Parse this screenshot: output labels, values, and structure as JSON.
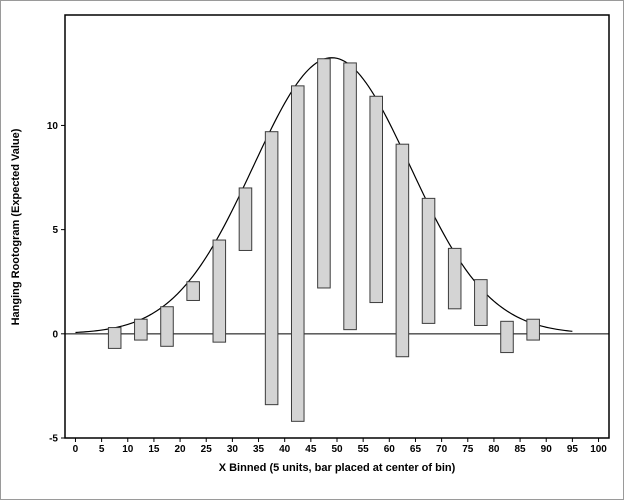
{
  "chart_data": {
    "type": "bar",
    "variant": "hanging-rootogram",
    "title": "",
    "xlabel": "X Binned (5 units, bar placed at center of bin)",
    "ylabel": "Hanging Rootogram (Expected Value)",
    "xlim": [
      -2,
      102
    ],
    "ylim": [
      -5,
      15.3
    ],
    "x_ticks": [
      0,
      5,
      10,
      15,
      20,
      25,
      30,
      35,
      40,
      45,
      50,
      55,
      60,
      65,
      70,
      75,
      80,
      85,
      90,
      95,
      100
    ],
    "y_ticks": [
      -5,
      0,
      5,
      10
    ],
    "bin_width": 5,
    "bar_width_units": 2.4,
    "grid": false,
    "legend": "none",
    "zero_line": true,
    "bars": [
      {
        "x": 7.5,
        "top": 0.3,
        "bottom": -0.7
      },
      {
        "x": 12.5,
        "top": 0.7,
        "bottom": -0.3
      },
      {
        "x": 17.5,
        "top": 1.3,
        "bottom": -0.6
      },
      {
        "x": 22.5,
        "top": 2.5,
        "bottom": 1.6
      },
      {
        "x": 27.5,
        "top": 4.5,
        "bottom": -0.4
      },
      {
        "x": 32.5,
        "top": 7.0,
        "bottom": 4.0
      },
      {
        "x": 37.5,
        "top": 9.7,
        "bottom": -3.4
      },
      {
        "x": 42.5,
        "top": 11.9,
        "bottom": -4.2
      },
      {
        "x": 47.5,
        "top": 13.2,
        "bottom": 2.2
      },
      {
        "x": 52.5,
        "top": 13.0,
        "bottom": 0.2
      },
      {
        "x": 57.5,
        "top": 11.4,
        "bottom": 1.5
      },
      {
        "x": 62.5,
        "top": 9.1,
        "bottom": -1.1
      },
      {
        "x": 67.5,
        "top": 6.5,
        "bottom": 0.5
      },
      {
        "x": 72.5,
        "top": 4.1,
        "bottom": 1.2
      },
      {
        "x": 77.5,
        "top": 2.6,
        "bottom": 0.4
      },
      {
        "x": 82.5,
        "top": 0.6,
        "bottom": -0.9
      },
      {
        "x": 87.5,
        "top": 0.7,
        "bottom": -0.3
      }
    ],
    "curve": {
      "type": "normal",
      "mean": 49,
      "sd": 15,
      "peak": 13.25,
      "x_start": 0,
      "x_end": 95
    },
    "colors": {
      "bar_fill": "#d4d4d4",
      "bar_stroke": "#3c3c3c",
      "curve": "#000000",
      "frame": "#000000",
      "zero_line": "#000000",
      "background": "#ffffff"
    }
  }
}
